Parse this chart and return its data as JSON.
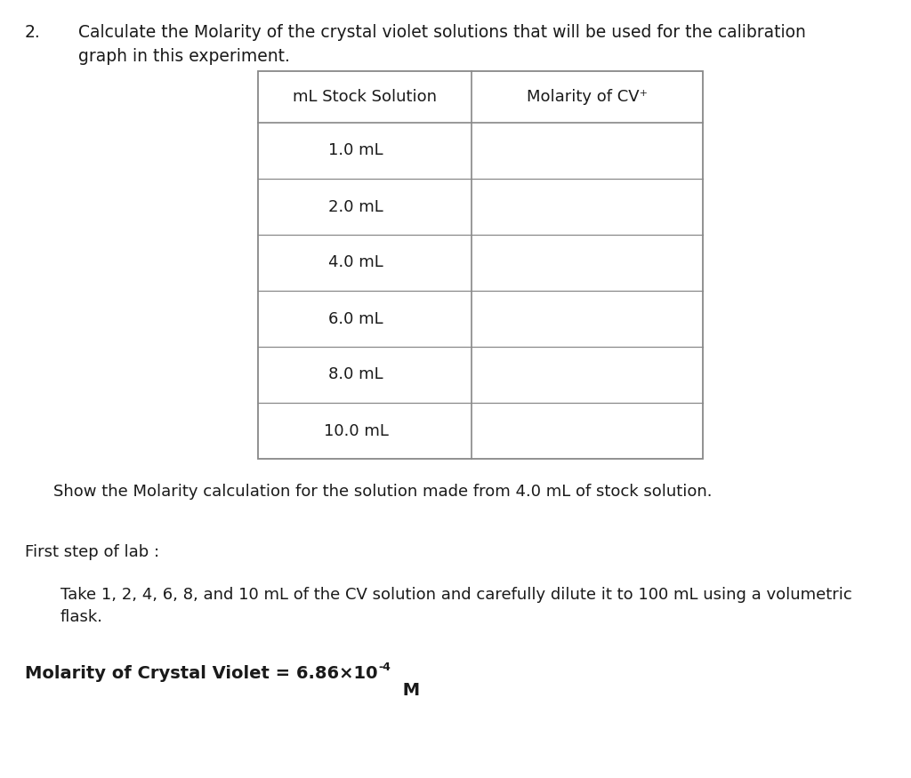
{
  "title_number": "2.",
  "title_text": "Calculate the Molarity of the crystal violet solutions that will be used for the calibration\ngraph in this experiment.",
  "col1_header": "mL Stock Solution",
  "col2_header": "Molarity of CV⁺",
  "rows": [
    "1.0 mL",
    "2.0 mL",
    "4.0 mL",
    "6.0 mL",
    "8.0 mL",
    "10.0 mL"
  ],
  "show_text": "Show the Molarity calculation for the solution made from 4.0 mL of stock solution.",
  "first_step_label": "First step of lab :",
  "first_step_body": "Take 1, 2, 4, 6, 8, and 10 mL of the CV solution and carefully dilute it to 100 mL using a volumetric\nflask.",
  "molarity_main": "Molarity of Crystal Violet = 6.86×10",
  "molarity_superscript": "-4",
  "molarity_unit": " M",
  "background_color": "#ffffff",
  "text_color": "#1a1a1a",
  "table_line_color": "#888888",
  "title_fontsize": 13.5,
  "body_fontsize": 13,
  "table_header_fontsize": 13,
  "table_cell_fontsize": 13,
  "molarity_bold_fontsize": 14,
  "molarity_sup_fontsize": 9,
  "font_family": "Arial"
}
